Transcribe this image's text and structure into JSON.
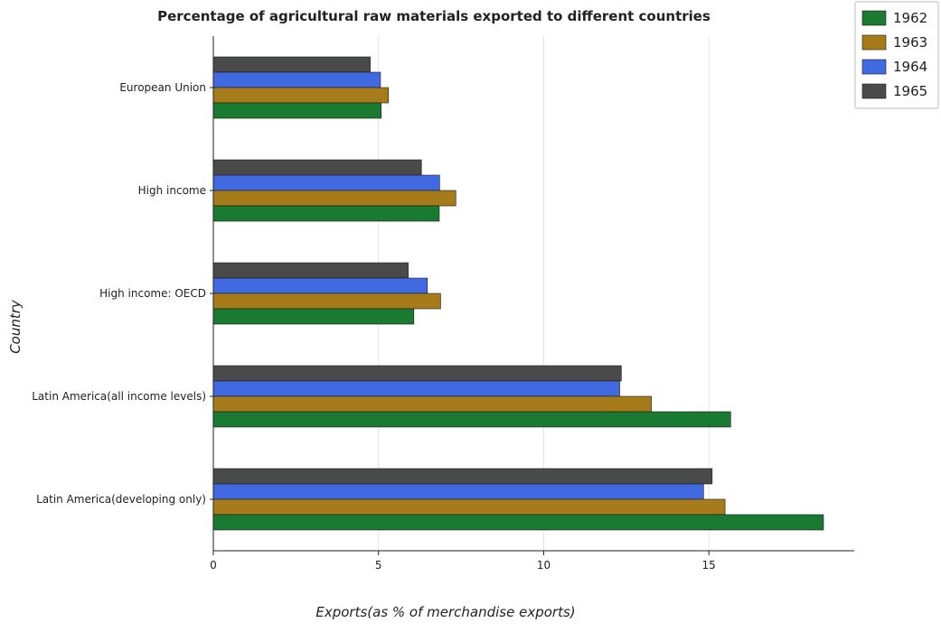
{
  "chart_data": {
    "type": "bar",
    "orientation": "horizontal",
    "title": "Percentage of agricultural raw materials exported to different countries",
    "xlabel": "Exports(as % of merchandise exports)",
    "ylabel": "Country",
    "xlim": [
      0,
      19.4
    ],
    "xticks": [
      0,
      5,
      10,
      15
    ],
    "xtick_labels": [
      "0",
      "5",
      "10",
      "15"
    ],
    "legend_position": "top-right",
    "categories": [
      "European Union",
      "High income",
      "High income: OECD",
      "Latin America(all income levels)",
      "Latin America(developing only)"
    ],
    "series": [
      {
        "name": "1962",
        "color": "#1a7a32",
        "values": [
          5.08,
          6.84,
          6.07,
          15.66,
          18.47
        ]
      },
      {
        "name": "1963",
        "color": "#a67c1b",
        "values": [
          5.3,
          7.34,
          6.88,
          13.26,
          15.49
        ]
      },
      {
        "name": "1964",
        "color": "#4169e1",
        "values": [
          5.06,
          6.85,
          6.48,
          12.3,
          14.84
        ]
      },
      {
        "name": "1965",
        "color": "#4a4a4a",
        "values": [
          4.75,
          6.3,
          5.9,
          12.35,
          15.1
        ]
      }
    ]
  }
}
